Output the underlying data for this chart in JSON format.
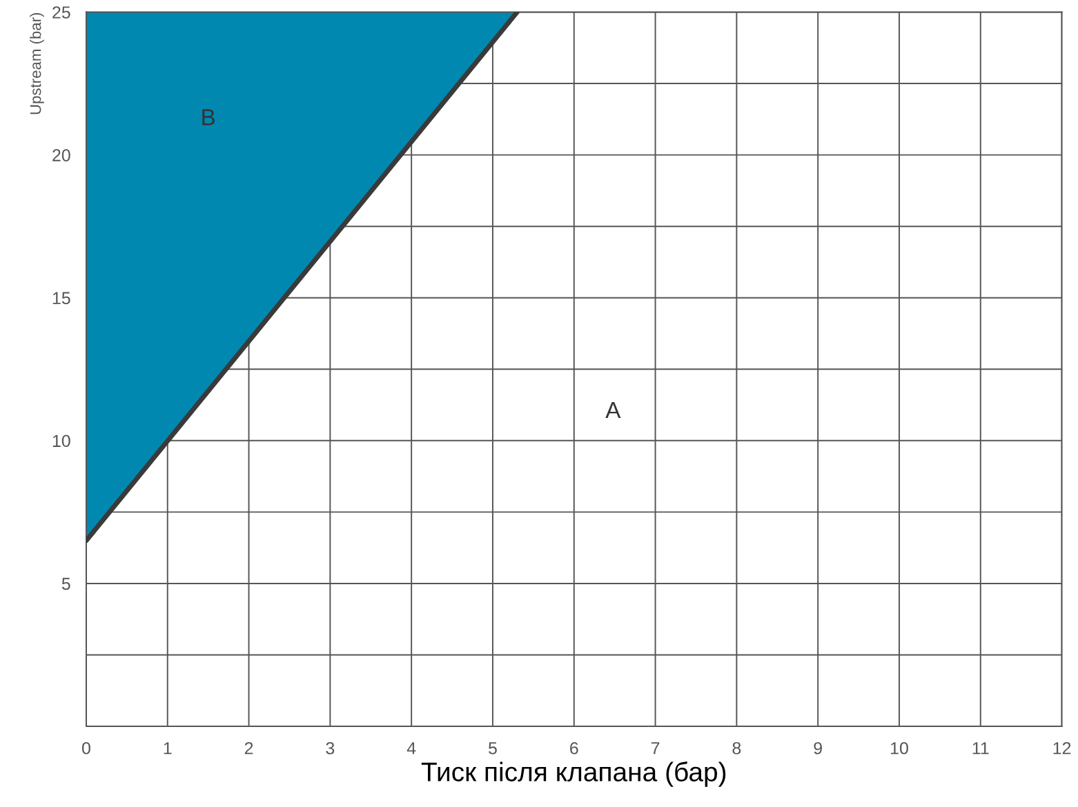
{
  "chart_data": {
    "type": "line",
    "xlabel": "Тиск після клапана (бар)",
    "ylabel": "Upstream (bar)",
    "series": [
      {
        "x": [
          0,
          5.3
        ],
        "values": [
          6.5,
          25
        ],
        "lower": [
          6.5,
          25
        ],
        "upper": [
          25,
          25
        ],
        "color": "#3a3a3a"
      }
    ],
    "annotations": [
      "B",
      "A"
    ],
    "xlim": [
      0,
      12
    ],
    "ylim": [
      0,
      25
    ],
    "xticks": [
      0,
      1,
      2,
      3,
      4,
      5,
      6,
      7,
      8,
      9,
      10,
      11,
      12
    ],
    "yticks": [
      {
        "value": 0,
        "label": null
      },
      {
        "value": 2.5,
        "label": null
      },
      5,
      {
        "value": 7.5,
        "label": null
      },
      10,
      {
        "value": 12.5,
        "label": null
      },
      15,
      {
        "value": 17.5,
        "label": null
      },
      20,
      {
        "value": 22.5,
        "label": null
      },
      25
    ],
    "grid": true,
    "marker": "none",
    "line_style": "solid"
  }
}
